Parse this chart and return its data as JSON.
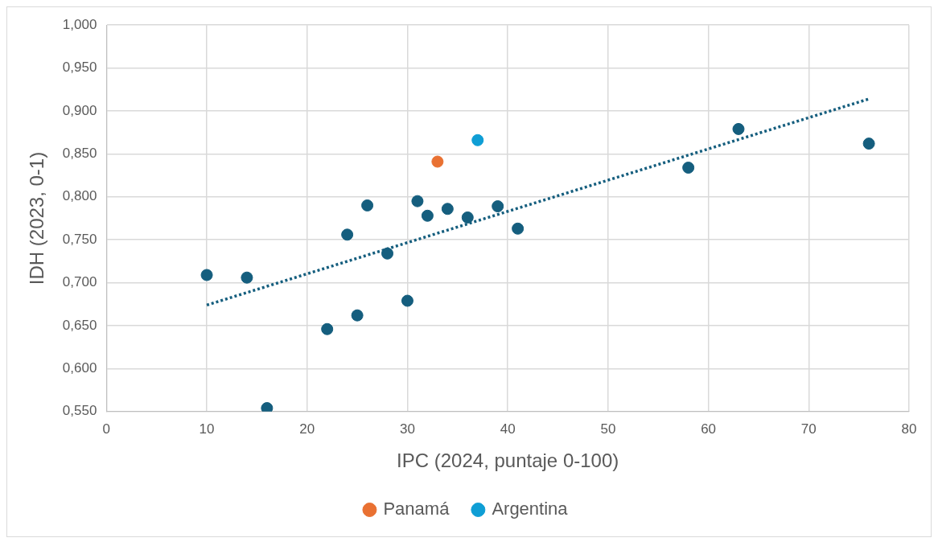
{
  "chart_data": {
    "type": "scatter",
    "xlabel": "IPC (2024, puntaje 0-100)",
    "ylabel": "IDH (2023, 0-1)",
    "xlim": [
      0,
      80
    ],
    "xticks": [
      0,
      10,
      20,
      30,
      40,
      50,
      60,
      70,
      80
    ],
    "ylim": [
      0.55,
      1.0
    ],
    "yticks": [
      {
        "value": 0.55,
        "label": "0,550"
      },
      {
        "value": 0.6,
        "label": "0,600"
      },
      {
        "value": 0.65,
        "label": "0,650"
      },
      {
        "value": 0.7,
        "label": "0,700"
      },
      {
        "value": 0.75,
        "label": "0,750"
      },
      {
        "value": 0.8,
        "label": "0,800"
      },
      {
        "value": 0.85,
        "label": "0,850"
      },
      {
        "value": 0.9,
        "label": "0,900"
      },
      {
        "value": 0.95,
        "label": "0,950"
      },
      {
        "value": 1.0,
        "label": "1,000"
      }
    ],
    "grid": true,
    "legend": "bottom",
    "marker": "circle",
    "series": [
      {
        "color": "#155e7e",
        "x": [
          10,
          14,
          16,
          22,
          24,
          25,
          26,
          28,
          30,
          31,
          32,
          34,
          36,
          39,
          41,
          58,
          63,
          76
        ],
        "values": [
          0.709,
          0.706,
          0.554,
          0.646,
          0.756,
          0.662,
          0.79,
          0.734,
          0.679,
          0.795,
          0.778,
          0.786,
          0.776,
          0.789,
          0.763,
          0.834,
          0.879,
          0.862
        ]
      },
      {
        "name": "Panamá",
        "color": "#e97132",
        "x": [
          33
        ],
        "values": [
          0.841
        ]
      },
      {
        "name": "Argentina",
        "color": "#0f9ed5",
        "x": [
          37
        ],
        "values": [
          0.866
        ]
      },
      {
        "type": "line",
        "color": "#155e7e",
        "line_style": "dotted",
        "marker": "none",
        "x": [
          10,
          76
        ],
        "values": [
          0.674,
          0.914
        ]
      }
    ]
  }
}
